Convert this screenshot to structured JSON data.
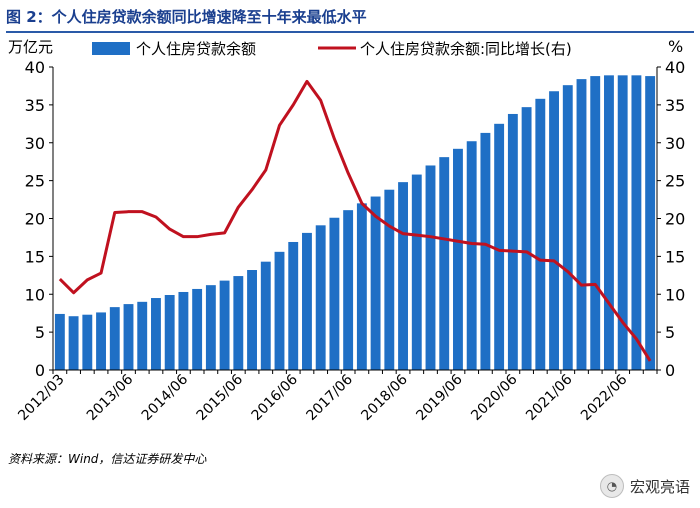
{
  "figure": {
    "title": "图 2：个人住房贷款余额同比增速降至十年来最低水平",
    "source": "资料来源：Wind，信达证券研发中心",
    "watermark": "宏观亮语",
    "watermark_icon": "wechat-icon"
  },
  "colors": {
    "title": "#1a3f8f",
    "bar": "#1f6fc5",
    "line": "#c0111f",
    "axis": "#000000"
  },
  "chart_data": {
    "type": "bar+line",
    "left_unit": "万亿元",
    "right_unit": "%",
    "left_ylim": [
      0,
      40
    ],
    "right_ylim": [
      0,
      40
    ],
    "left_ticks": [
      0,
      5,
      10,
      15,
      20,
      25,
      30,
      35,
      40
    ],
    "right_ticks": [
      0,
      5,
      10,
      15,
      20,
      25,
      30,
      35,
      40
    ],
    "x_tick_labels": [
      "2012/03",
      "2013/06",
      "2014/06",
      "2015/06",
      "2016/06",
      "2017/06",
      "2018/06",
      "2019/06",
      "2020/06",
      "2021/06",
      "2022/06"
    ],
    "x_tick_indices": [
      0,
      5,
      9,
      13,
      17,
      21,
      25,
      29,
      33,
      37,
      41
    ],
    "grid": false,
    "legend_position": "top",
    "series": [
      {
        "name": "个人住房贷款余额",
        "kind": "bar",
        "axis": "left",
        "values": [
          7.4,
          7.1,
          7.3,
          7.6,
          8.3,
          8.7,
          9.0,
          9.5,
          9.9,
          10.3,
          10.7,
          11.2,
          11.8,
          12.4,
          13.2,
          14.3,
          15.6,
          16.9,
          18.1,
          19.1,
          20.1,
          21.1,
          22.0,
          22.9,
          23.8,
          24.8,
          25.8,
          27.0,
          28.1,
          29.2,
          30.2,
          31.3,
          32.5,
          33.8,
          34.7,
          35.8,
          36.8,
          37.6,
          38.4,
          38.8,
          38.9,
          38.9,
          38.9,
          38.8
        ]
      },
      {
        "name": "个人住房贷款余额:同比增长(右)",
        "kind": "line",
        "axis": "right",
        "values": [
          12.0,
          10.2,
          11.9,
          12.8,
          20.8,
          20.9,
          20.9,
          20.2,
          18.6,
          17.6,
          17.6,
          17.9,
          18.1,
          21.5,
          23.8,
          26.4,
          32.3,
          35.0,
          38.1,
          35.6,
          30.5,
          26.0,
          22.0,
          20.3,
          19.0,
          18.0,
          17.8,
          17.6,
          17.3,
          17.0,
          16.7,
          16.6,
          15.8,
          15.7,
          15.6,
          14.5,
          14.4,
          13.0,
          11.2,
          11.3,
          8.8,
          6.3,
          4.1,
          1.2
        ]
      }
    ]
  }
}
